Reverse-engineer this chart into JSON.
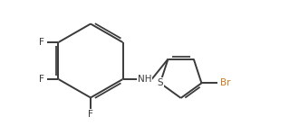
{
  "bg_color": "#ffffff",
  "bond_color": "#3a3a3a",
  "atom_colors": {
    "F": "#3a3a3a",
    "N": "#3a3a3a",
    "H": "#3a3a3a",
    "Br": "#cc7722",
    "S": "#3a3a3a",
    "C": "#3a3a3a"
  },
  "figsize": [
    3.3,
    1.4
  ],
  "dpi": 100,
  "bond_lw": 1.4,
  "font_size": 7.5
}
